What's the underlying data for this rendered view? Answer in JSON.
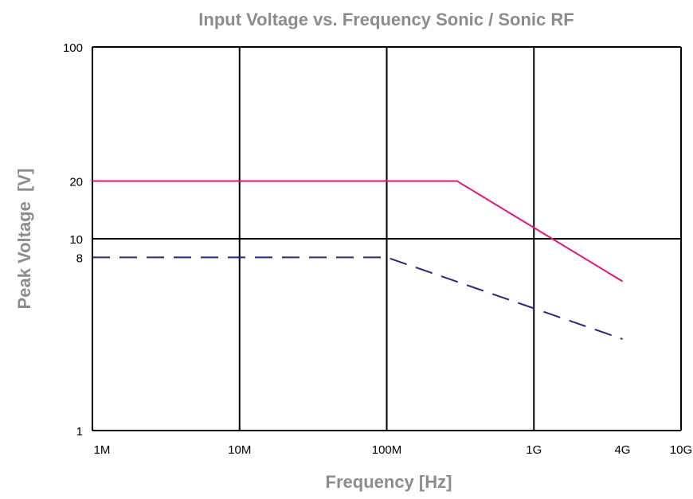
{
  "chart_data": {
    "type": "line",
    "title": "Input Voltage vs. Frequency Sonic / Sonic RF",
    "xlabel": "Frequency [Hz]",
    "ylabel": "Peak Voltage  [V]",
    "x_scale": "log",
    "y_scale": "log",
    "xlim": [
      1000000,
      10000000000
    ],
    "ylim": [
      1,
      100
    ],
    "grid": true,
    "x_ticks": [
      {
        "value": 1000000,
        "label": "1M"
      },
      {
        "value": 10000000,
        "label": "10M"
      },
      {
        "value": 100000000,
        "label": "100M"
      },
      {
        "value": 1000000000,
        "label": "1G"
      },
      {
        "value": 4000000000,
        "label": "4G"
      },
      {
        "value": 10000000000,
        "label": "10G"
      }
    ],
    "y_ticks": [
      {
        "value": 1,
        "label": "1"
      },
      {
        "value": 8,
        "label": "8"
      },
      {
        "value": 10,
        "label": "10"
      },
      {
        "value": 20,
        "label": "20"
      },
      {
        "value": 100,
        "label": "100"
      }
    ],
    "x_gridlines": [
      1000000,
      10000000,
      100000000,
      1000000000,
      10000000000
    ],
    "y_gridlines": [
      1,
      10,
      100
    ],
    "series": [
      {
        "style": "solid",
        "color": "#e0147c",
        "x": [
          1000000,
          300000000,
          4000000000
        ],
        "y": [
          20,
          20,
          6
        ]
      },
      {
        "style": "dashed",
        "color": "#2a2878",
        "x": [
          1000000,
          100000000,
          4000000000
        ],
        "y": [
          8,
          8,
          3
        ]
      }
    ]
  }
}
